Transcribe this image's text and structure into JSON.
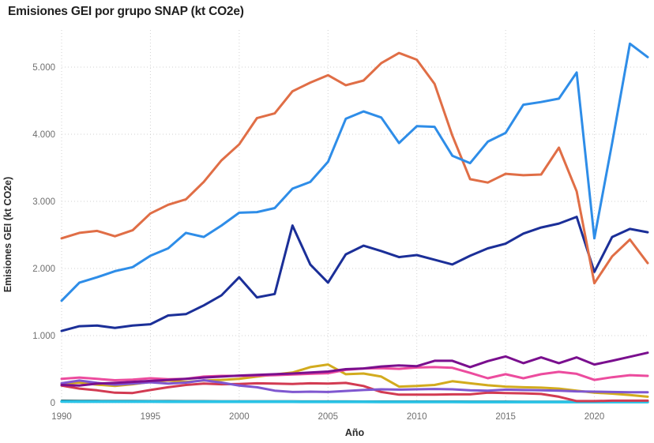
{
  "page": {
    "title": "Emisiones GEI por grupo SNAP (kt CO2e)"
  },
  "chart_data": {
    "type": "line",
    "title": "Emisiones GEI por grupo SNAP (kt CO2e)",
    "xlabel": "Año",
    "ylabel": "Emisiones GEI (kt CO2e)",
    "xlim": [
      1990,
      2023
    ],
    "ylim": [
      0,
      5530
    ],
    "grid": "dotted",
    "legend_position": "none",
    "x": [
      1990,
      1991,
      1992,
      1993,
      1994,
      1995,
      1996,
      1997,
      1998,
      1999,
      2000,
      2001,
      2002,
      2003,
      2004,
      2005,
      2006,
      2007,
      2008,
      2009,
      2010,
      2011,
      2012,
      2013,
      2014,
      2015,
      2016,
      2017,
      2018,
      2019,
      2020,
      2021,
      2022,
      2023
    ],
    "xticks": {
      "values": [
        1990,
        1995,
        2000,
        2005,
        2010,
        2015,
        2020
      ],
      "labels": [
        "1990",
        "1995",
        "2000",
        "2005",
        "2010",
        "2015",
        "2020"
      ]
    },
    "yticks": {
      "values": [
        0,
        1000,
        2000,
        3000,
        4000,
        5000
      ],
      "labels": [
        "0",
        "1.000",
        "2.000",
        "3.000",
        "4.000",
        "5.000"
      ]
    },
    "series": [
      {
        "name": "dark-teal",
        "color": "#1F4F52",
        "width": 2,
        "values": [
          35,
          33,
          32,
          30,
          30,
          29,
          29,
          28,
          28,
          27,
          27,
          26,
          26,
          26,
          25,
          25,
          25,
          24,
          24,
          24,
          23,
          23,
          23,
          22,
          22,
          22,
          21,
          21,
          21,
          20,
          20,
          20,
          20,
          20
        ]
      },
      {
        "name": "cyan",
        "color": "#29C3E6",
        "width": 3.5,
        "values": [
          18,
          17,
          17,
          16,
          16,
          16,
          15,
          15,
          15,
          15,
          14,
          14,
          14,
          14,
          13,
          13,
          13,
          13,
          12,
          12,
          12,
          12,
          12,
          11,
          11,
          11,
          11,
          11,
          10,
          10,
          10,
          10,
          10,
          10
        ]
      },
      {
        "name": "red",
        "color": "#D23B52",
        "width": 3,
        "values": [
          255,
          210,
          185,
          150,
          145,
          190,
          230,
          265,
          285,
          275,
          280,
          290,
          285,
          280,
          290,
          285,
          295,
          250,
          160,
          120,
          120,
          120,
          125,
          125,
          150,
          145,
          140,
          130,
          90,
          25,
          25,
          30,
          30,
          30
        ]
      },
      {
        "name": "yellow",
        "color": "#D2AB1E",
        "width": 3,
        "values": [
          285,
          300,
          270,
          250,
          275,
          310,
          330,
          310,
          330,
          340,
          355,
          390,
          420,
          450,
          530,
          570,
          425,
          435,
          390,
          240,
          250,
          265,
          320,
          290,
          260,
          240,
          230,
          225,
          210,
          180,
          150,
          135,
          115,
          90
        ]
      },
      {
        "name": "violet",
        "color": "#7F57D0",
        "width": 3,
        "values": [
          290,
          330,
          295,
          270,
          285,
          305,
          285,
          300,
          335,
          300,
          255,
          230,
          180,
          160,
          165,
          160,
          175,
          190,
          200,
          195,
          200,
          205,
          200,
          185,
          180,
          195,
          190,
          185,
          180,
          170,
          165,
          160,
          155,
          155
        ]
      },
      {
        "name": "pink",
        "color": "#EC4C9E",
        "width": 3,
        "values": [
          355,
          375,
          355,
          335,
          345,
          365,
          350,
          355,
          390,
          400,
          400,
          405,
          410,
          420,
          430,
          440,
          490,
          510,
          515,
          505,
          525,
          530,
          520,
          445,
          365,
          425,
          365,
          425,
          460,
          430,
          340,
          380,
          410,
          400
        ]
      },
      {
        "name": "dark-purple",
        "color": "#7A0F8E",
        "width": 3,
        "values": [
          265,
          255,
          285,
          295,
          310,
          325,
          340,
          355,
          375,
          390,
          405,
          415,
          425,
          435,
          450,
          465,
          500,
          510,
          540,
          555,
          545,
          625,
          625,
          530,
          620,
          690,
          590,
          675,
          590,
          675,
          570,
          625,
          685,
          745
        ]
      },
      {
        "name": "navy",
        "color": "#1B2F98",
        "width": 3,
        "values": [
          1070,
          1140,
          1150,
          1115,
          1150,
          1170,
          1300,
          1320,
          1450,
          1600,
          1870,
          1570,
          1620,
          2640,
          2060,
          1790,
          2210,
          2340,
          2260,
          2170,
          2200,
          2130,
          2060,
          2190,
          2300,
          2370,
          2520,
          2610,
          2670,
          2770,
          1950,
          2470,
          2590,
          2540
        ]
      },
      {
        "name": "orange",
        "color": "#E06E46",
        "width": 3,
        "values": [
          2450,
          2530,
          2560,
          2480,
          2570,
          2820,
          2950,
          3030,
          3290,
          3610,
          3850,
          4240,
          4310,
          4640,
          4770,
          4880,
          4730,
          4800,
          5060,
          5210,
          5110,
          4750,
          3980,
          3330,
          3280,
          3410,
          3390,
          3400,
          3800,
          3150,
          1780,
          2180,
          2430,
          2080
        ]
      },
      {
        "name": "light-blue",
        "color": "#2E8DE8",
        "width": 3,
        "values": [
          1520,
          1790,
          1870,
          1960,
          2020,
          2190,
          2300,
          2530,
          2470,
          2640,
          2830,
          2840,
          2900,
          3190,
          3290,
          3590,
          4230,
          4340,
          4250,
          3870,
          4120,
          4110,
          3680,
          3570,
          3890,
          4020,
          4440,
          4480,
          4530,
          4920,
          2450,
          3870,
          5350,
          5150
        ]
      }
    ]
  }
}
